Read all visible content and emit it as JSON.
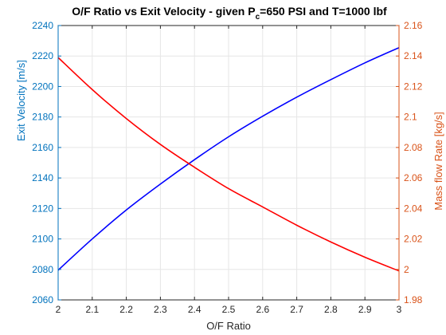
{
  "chart_data": {
    "type": "line",
    "title": {
      "prefix": "O/F Ratio vs Exit Velocity - given P",
      "subscript": "c",
      "suffix": "=650 PSI and T=1000 lbf"
    },
    "xlabel": "O/F Ratio",
    "ylabel_left": "Exit Velocity [m/s]",
    "ylabel_right": "Mass flow Rate [kg/s]",
    "xlim": [
      2,
      3
    ],
    "ylim_left": [
      2060,
      2240
    ],
    "ylim_right": [
      1.98,
      2.16
    ],
    "x_ticks": [
      2,
      2.1,
      2.2,
      2.3,
      2.4,
      2.5,
      2.6,
      2.7,
      2.8,
      2.9,
      3
    ],
    "x_tick_labels": [
      "2",
      "2.1",
      "2.2",
      "2.3",
      "2.4",
      "2.5",
      "2.6",
      "2.7",
      "2.8",
      "2.9",
      "3"
    ],
    "y_left_ticks": [
      2060,
      2080,
      2100,
      2120,
      2140,
      2160,
      2180,
      2200,
      2220,
      2240
    ],
    "y_left_tick_labels": [
      "2060",
      "2080",
      "2100",
      "2120",
      "2140",
      "2160",
      "2180",
      "2200",
      "2220",
      "2240"
    ],
    "y_right_ticks": [
      1.98,
      2,
      2.02,
      2.04,
      2.06,
      2.08,
      2.1,
      2.12,
      2.14,
      2.16
    ],
    "y_right_tick_labels": [
      "1.98",
      "2",
      "2.02",
      "2.04",
      "2.06",
      "2.08",
      "2.1",
      "2.12",
      "2.14",
      "2.16"
    ],
    "grid": true,
    "x": [
      2,
      2.1,
      2.2,
      2.3,
      2.4,
      2.5,
      2.6,
      2.7,
      2.8,
      2.9,
      3
    ],
    "series": [
      {
        "axis": "left",
        "color": "#0000ff",
        "values": [
          2079.5,
          2100.0,
          2119.0,
          2136.0,
          2152.0,
          2167.0,
          2180.5,
          2193.0,
          2204.5,
          2215.5,
          2225.5
        ]
      },
      {
        "axis": "right",
        "color": "#ff0000",
        "values": [
          2.139,
          2.118,
          2.099,
          2.082,
          2.067,
          2.053,
          2.041,
          2.029,
          2.018,
          2.008,
          1.999
        ]
      }
    ],
    "left_axis_color": "#0072bd",
    "right_axis_color": "#d95319",
    "x_axis_color": "#262626",
    "grid_color": "#e6e6e6"
  }
}
